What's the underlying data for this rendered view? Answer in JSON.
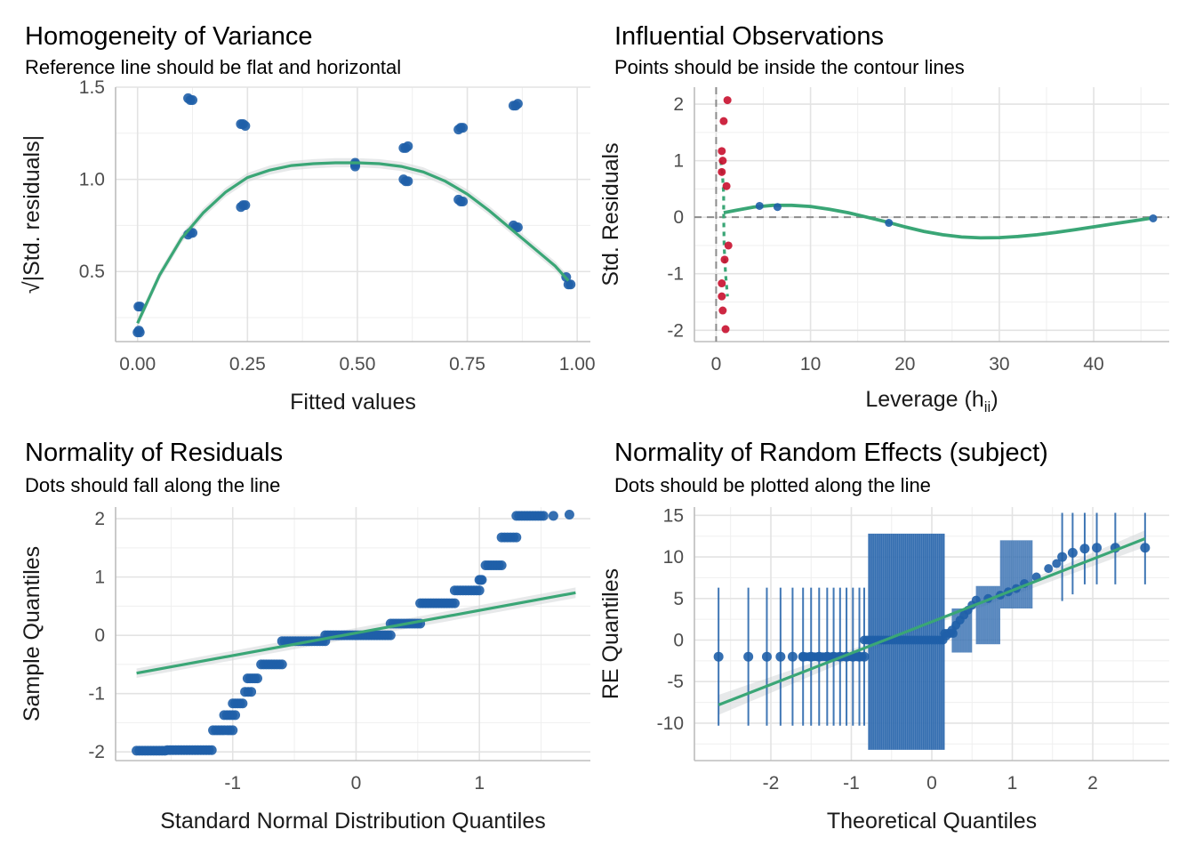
{
  "colors": {
    "point": "#1f5fa8",
    "fit": "#3aa676",
    "influential": "#c8102e",
    "grid": "#e3e3e3",
    "ref": "#8c8c8c",
    "ci": "#cfd3d6"
  },
  "chart_data": [
    {
      "id": "homogeneity",
      "type": "scatter",
      "title": "Homogeneity of Variance",
      "subtitle": "Reference line should be flat and horizontal",
      "xlabel": "Fitted values",
      "ylabel": "√|Std. residuals|",
      "xlim": [
        -0.05,
        1.03
      ],
      "ylim": [
        0.12,
        1.5
      ],
      "xticks": [
        0,
        0.25,
        0.5,
        0.75,
        1
      ],
      "xtick_labels": [
        "0.00",
        "0.25",
        "0.50",
        "0.75",
        "1.00"
      ],
      "yticks": [
        0.5,
        1,
        1.5
      ],
      "ytick_labels": [
        "0.5",
        "1.0",
        "1.5"
      ],
      "grid": true,
      "points": [
        [
          0.0,
          0.17
        ],
        [
          0.003,
          0.18
        ],
        [
          0.005,
          0.17
        ],
        [
          0.002,
          0.31
        ],
        [
          0.006,
          0.31
        ],
        [
          0.115,
          1.44
        ],
        [
          0.12,
          1.43
        ],
        [
          0.125,
          1.43
        ],
        [
          0.115,
          0.7
        ],
        [
          0.12,
          0.71
        ],
        [
          0.125,
          0.71
        ],
        [
          0.235,
          1.3
        ],
        [
          0.24,
          1.3
        ],
        [
          0.245,
          1.29
        ],
        [
          0.235,
          0.85
        ],
        [
          0.24,
          0.86
        ],
        [
          0.245,
          0.86
        ],
        [
          0.495,
          1.09
        ],
        [
          0.495,
          1.08
        ],
        [
          0.495,
          1.07
        ],
        [
          0.605,
          1.17
        ],
        [
          0.61,
          1.17
        ],
        [
          0.615,
          1.18
        ],
        [
          0.605,
          1.0
        ],
        [
          0.61,
          0.99
        ],
        [
          0.615,
          0.99
        ],
        [
          0.73,
          1.27
        ],
        [
          0.735,
          1.28
        ],
        [
          0.74,
          1.28
        ],
        [
          0.73,
          0.89
        ],
        [
          0.735,
          0.88
        ],
        [
          0.74,
          0.88
        ],
        [
          0.855,
          1.4
        ],
        [
          0.86,
          1.4
        ],
        [
          0.865,
          1.41
        ],
        [
          0.855,
          0.75
        ],
        [
          0.86,
          0.74
        ],
        [
          0.865,
          0.74
        ],
        [
          0.975,
          0.47
        ],
        [
          0.98,
          0.43
        ],
        [
          0.985,
          0.43
        ]
      ],
      "fit": [
        [
          0.0,
          0.22
        ],
        [
          0.05,
          0.48
        ],
        [
          0.1,
          0.68
        ],
        [
          0.15,
          0.82
        ],
        [
          0.2,
          0.93
        ],
        [
          0.25,
          1.01
        ],
        [
          0.3,
          1.05
        ],
        [
          0.35,
          1.075
        ],
        [
          0.4,
          1.085
        ],
        [
          0.45,
          1.09
        ],
        [
          0.5,
          1.09
        ],
        [
          0.55,
          1.085
        ],
        [
          0.6,
          1.07
        ],
        [
          0.65,
          1.04
        ],
        [
          0.7,
          0.99
        ],
        [
          0.75,
          0.92
        ],
        [
          0.8,
          0.83
        ],
        [
          0.85,
          0.73
        ],
        [
          0.9,
          0.63
        ],
        [
          0.95,
          0.53
        ],
        [
          0.98,
          0.45
        ]
      ]
    },
    {
      "id": "influential",
      "type": "scatter",
      "title": "Influential Observations",
      "subtitle": "Points should be inside the contour lines",
      "xlabel_main": "Leverage (h",
      "xlabel_sub": "ii",
      "xlabel_end": ")",
      "ylabel": "Std. Residuals",
      "xlim": [
        -2.3,
        48
      ],
      "ylim": [
        -2.2,
        2.3
      ],
      "xticks": [
        0,
        10,
        20,
        30,
        40
      ],
      "xtick_labels": [
        "0",
        "10",
        "20",
        "30",
        "40"
      ],
      "yticks": [
        -2,
        -1,
        0,
        1,
        2
      ],
      "ytick_labels": [
        "-2",
        "-1",
        "0",
        "1",
        "2"
      ],
      "grid": true,
      "ref_lines": {
        "x": 0,
        "y": 0
      },
      "points_influential": [
        [
          1.2,
          2.07
        ],
        [
          0.8,
          1.7
        ],
        [
          0.6,
          1.17
        ],
        [
          0.7,
          1.0
        ],
        [
          0.6,
          0.8
        ],
        [
          1.1,
          0.55
        ],
        [
          1.3,
          -0.5
        ],
        [
          0.9,
          -0.75
        ],
        [
          0.6,
          -1.17
        ],
        [
          0.6,
          -1.4
        ],
        [
          0.7,
          -1.65
        ],
        [
          1.0,
          -1.98
        ]
      ],
      "points": [
        [
          4.6,
          0.2
        ],
        [
          6.5,
          0.18
        ],
        [
          18.3,
          -0.1
        ],
        [
          46.3,
          -0.02
        ]
      ],
      "fit": [
        [
          0.8,
          0.08
        ],
        [
          2,
          0.12
        ],
        [
          4,
          0.18
        ],
        [
          6,
          0.21
        ],
        [
          8,
          0.21
        ],
        [
          10,
          0.19
        ],
        [
          12,
          0.14
        ],
        [
          14,
          0.08
        ],
        [
          16,
          0.0
        ],
        [
          18,
          -0.08
        ],
        [
          20,
          -0.17
        ],
        [
          22,
          -0.25
        ],
        [
          24,
          -0.31
        ],
        [
          26,
          -0.35
        ],
        [
          28,
          -0.365
        ],
        [
          30,
          -0.36
        ],
        [
          32,
          -0.34
        ],
        [
          34,
          -0.31
        ],
        [
          36,
          -0.27
        ],
        [
          38,
          -0.22
        ],
        [
          40,
          -0.17
        ],
        [
          42,
          -0.12
        ],
        [
          44,
          -0.07
        ],
        [
          46,
          -0.02
        ]
      ],
      "fit_dotted": [
        [
          0.5,
          1.0
        ],
        [
          0.7,
          0.7
        ],
        [
          0.8,
          0.4
        ],
        [
          0.8,
          0.08
        ],
        [
          0.85,
          -0.5
        ],
        [
          1.0,
          -1.0
        ],
        [
          1.2,
          -1.4
        ]
      ]
    },
    {
      "id": "normality-residuals",
      "type": "scatter",
      "title": "Normality of Residuals",
      "subtitle": "Dots should fall along the line",
      "xlabel": "Standard Normal Distribution Quantiles",
      "ylabel": "Sample Quantiles",
      "xlim": [
        -1.95,
        1.9
      ],
      "ylim": [
        -2.15,
        2.2
      ],
      "xticks": [
        -1,
        0,
        1
      ],
      "xtick_labels": [
        "-1",
        "0",
        "1"
      ],
      "yticks": [
        -2,
        -1,
        0,
        1,
        2
      ],
      "ytick_labels": [
        "-2",
        "-1",
        "0",
        "1",
        "2"
      ],
      "grid": true,
      "steps": [
        [
          -1.78,
          -1.55,
          -1.98
        ],
        [
          -1.53,
          -1.17,
          -1.97
        ],
        [
          -1.16,
          -1.0,
          -1.63
        ],
        [
          -1.07,
          -0.98,
          -1.37
        ],
        [
          -1.0,
          -0.92,
          -1.17
        ],
        [
          -0.9,
          -0.85,
          -0.97
        ],
        [
          -0.88,
          -0.8,
          -0.74
        ],
        [
          -0.77,
          -0.6,
          -0.5
        ],
        [
          -0.6,
          -0.25,
          -0.1
        ],
        [
          -0.25,
          0.28,
          0.0
        ],
        [
          0.28,
          0.52,
          0.2
        ],
        [
          0.52,
          0.8,
          0.55
        ],
        [
          0.8,
          1.0,
          0.77
        ],
        [
          1.0,
          1.02,
          0.95
        ],
        [
          1.05,
          1.18,
          1.2
        ],
        [
          1.18,
          1.3,
          1.68
        ],
        [
          1.3,
          1.52,
          2.05
        ]
      ],
      "extra_points": [
        [
          1.6,
          2.05
        ],
        [
          1.73,
          2.07
        ]
      ],
      "fit_line": [
        [
          -1.78,
          -0.65
        ],
        [
          1.78,
          0.73
        ]
      ]
    },
    {
      "id": "normality-random-effects",
      "type": "scatter",
      "title": "Normality of Random Effects (subject)",
      "subtitle": "Dots should be plotted along the line",
      "xlabel": "Theoretical Quantiles",
      "ylabel": "RE Quantiles",
      "xlim": [
        -2.95,
        2.95
      ],
      "ylim": [
        -14.5,
        16
      ],
      "xticks": [
        -2,
        -1,
        0,
        1,
        2
      ],
      "xtick_labels": [
        "-2",
        "-1",
        "0",
        "1",
        "2"
      ],
      "yticks": [
        -10,
        -5,
        0,
        5,
        10,
        15
      ],
      "ytick_labels": [
        "-10",
        "-5",
        "0",
        "5",
        "10",
        "15"
      ],
      "grid": true,
      "errorbars": [
        [
          -2.65,
          -2,
          6.3,
          -10.3
        ],
        [
          -2.28,
          -2,
          6.3,
          -10.3
        ],
        [
          -2.05,
          -2,
          6.3,
          -10.3
        ],
        [
          -1.88,
          -2,
          6.3,
          -10.3
        ],
        [
          -1.73,
          -2,
          6.3,
          -10.3
        ],
        [
          -1.6,
          -2,
          6.3,
          -10.3
        ],
        [
          -1.5,
          -2,
          6.3,
          -10.3
        ],
        [
          -1.4,
          -2,
          6.3,
          -10.3
        ],
        [
          -1.3,
          -2,
          6.3,
          -10.3
        ],
        [
          -1.22,
          -2,
          6.3,
          -10.3
        ],
        [
          -1.14,
          -2,
          6.3,
          -10.3
        ],
        [
          -1.06,
          -2,
          6.3,
          -10.3
        ],
        [
          -0.98,
          -2,
          6.3,
          -10.3
        ],
        [
          -0.9,
          -2,
          6.3,
          -10.3
        ],
        [
          -0.84,
          -2,
          6.3,
          -10.3
        ],
        [
          1.62,
          10,
          15.3,
          4.7
        ],
        [
          1.75,
          10.5,
          15.3,
          5.5
        ],
        [
          1.9,
          11,
          15.3,
          6.7
        ],
        [
          2.05,
          11.1,
          15.3,
          6.7
        ],
        [
          2.28,
          11.1,
          15.3,
          6.7
        ],
        [
          2.65,
          11.1,
          15.3,
          6.7
        ]
      ],
      "band": {
        "x0": -0.79,
        "x1": 0.16,
        "y0": -13.2,
        "y1": 12.8,
        "center": 0
      },
      "band2": {
        "x0": 0.25,
        "x1": 0.5,
        "y0": -1.5,
        "y1": 3.8,
        "center": 1.5
      },
      "band3": {
        "x0": 0.55,
        "x1": 0.85,
        "y0": -0.5,
        "y1": 6.5,
        "center": 4.5
      },
      "band4": {
        "x0": 0.85,
        "x1": 1.25,
        "y0": 3.8,
        "y1": 12.0,
        "center": 6
      },
      "points": [
        [
          0.18,
          0.5
        ],
        [
          0.25,
          1.2
        ],
        [
          0.3,
          1.8
        ],
        [
          0.35,
          2.4
        ],
        [
          0.4,
          3.0
        ],
        [
          0.45,
          3.6
        ],
        [
          0.5,
          4.2
        ],
        [
          0.55,
          4.8
        ],
        [
          0.7,
          5.0
        ],
        [
          0.85,
          5.4
        ],
        [
          0.95,
          5.8
        ],
        [
          1.05,
          6.2
        ],
        [
          1.15,
          6.8
        ],
        [
          1.3,
          7.6
        ],
        [
          1.45,
          8.6
        ],
        [
          1.55,
          9.2
        ]
      ],
      "fit_line": [
        [
          -2.65,
          -7.8
        ],
        [
          2.65,
          12.2
        ]
      ]
    }
  ]
}
